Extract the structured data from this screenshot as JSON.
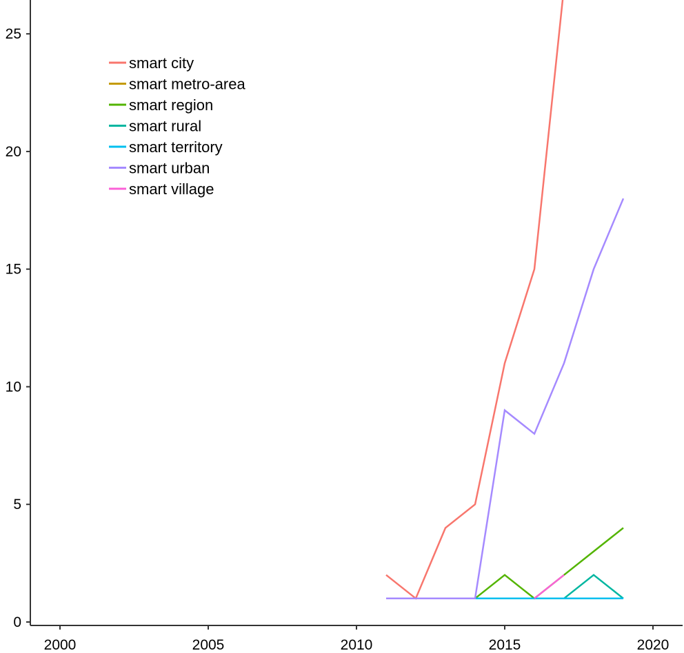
{
  "chart_data": {
    "type": "line",
    "title": "",
    "xlabel": "",
    "ylabel": "",
    "xlim": [
      1999,
      2021
    ],
    "ylim": [
      0,
      26
    ],
    "xticks": [
      2000,
      2005,
      2010,
      2015,
      2020
    ],
    "yticks": [
      0,
      5,
      10,
      15,
      20,
      25
    ],
    "grid": false,
    "legend_position": "top-left",
    "series": [
      {
        "name": "smart city",
        "color": "#F8766D",
        "x": [
          2011,
          2012,
          2013,
          2014,
          2015,
          2016,
          2017
        ],
        "y": [
          2,
          1,
          4,
          5,
          11,
          15,
          27
        ]
      },
      {
        "name": "smart metro-area",
        "color": "#C49A00",
        "x": [
          2013,
          2014
        ],
        "y": [
          1,
          1
        ]
      },
      {
        "name": "smart region",
        "color": "#53B400",
        "x": [
          2014,
          2015,
          2016,
          2017,
          2018,
          2019
        ],
        "y": [
          1,
          2,
          1,
          2,
          3,
          4
        ]
      },
      {
        "name": "smart rural",
        "color": "#00B6A0",
        "x": [
          2016,
          2017,
          2018,
          2019
        ],
        "y": [
          1,
          1,
          2,
          1
        ]
      },
      {
        "name": "smart territory",
        "color": "#00BFEF",
        "x": [
          2014,
          2015,
          2016,
          2017,
          2018,
          2019
        ],
        "y": [
          1,
          1,
          1,
          1,
          1,
          1
        ]
      },
      {
        "name": "smart urban",
        "color": "#A58AFF",
        "x": [
          2011,
          2012,
          2013,
          2014,
          2015,
          2016,
          2017,
          2018,
          2019
        ],
        "y": [
          1,
          1,
          1,
          1,
          9,
          8,
          11,
          15,
          18
        ]
      },
      {
        "name": "smart village",
        "color": "#FB61D7",
        "x": [
          2016,
          2017
        ],
        "y": [
          1,
          2
        ]
      }
    ]
  }
}
